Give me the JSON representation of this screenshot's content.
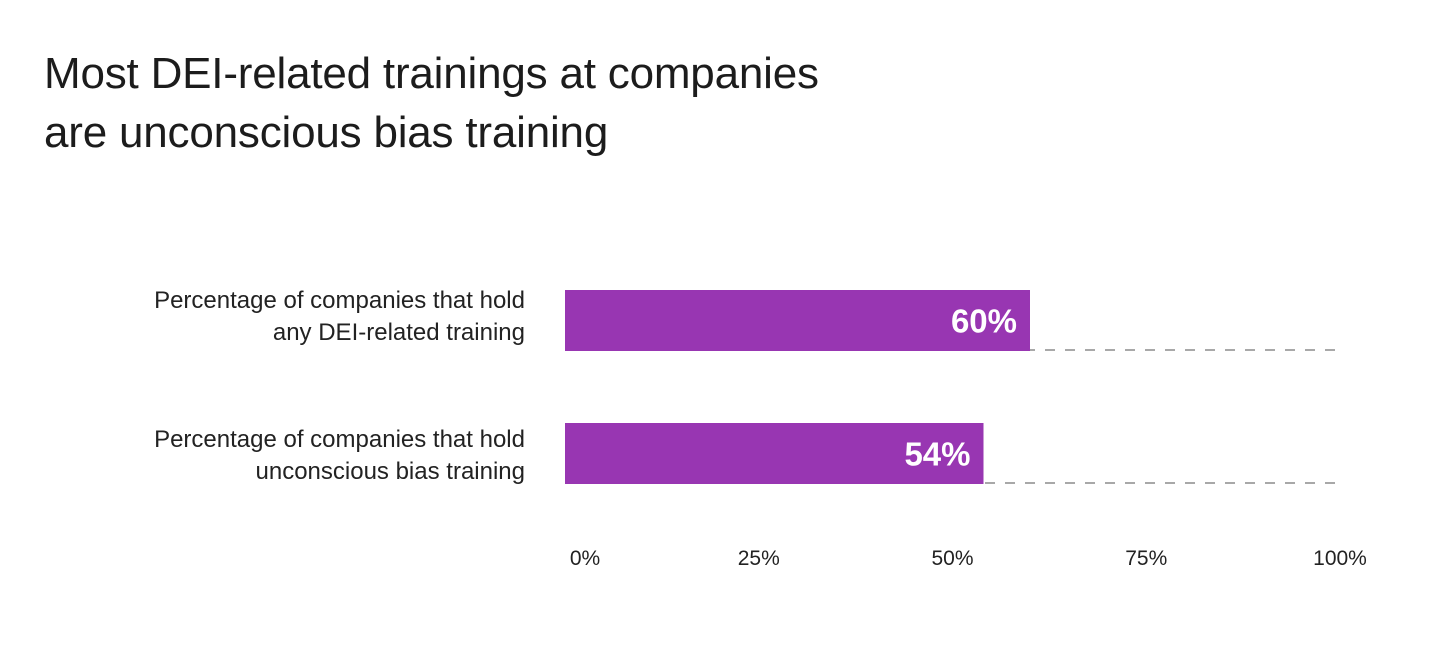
{
  "title_lines": [
    "Most DEI-related trainings at companies",
    "are unconscious bias training"
  ],
  "colors": {
    "bar": "#9836b2",
    "text": "#222222",
    "bar_label": "#ffffff",
    "gridline": "#8c8c8c"
  },
  "chart_data": {
    "type": "bar",
    "orientation": "horizontal",
    "title": "Most DEI-related trainings at companies are unconscious bias training",
    "categories": [
      [
        "Percentage of companies that hold",
        "any DEI-related training"
      ],
      [
        "Percentage of companies that hold",
        "unconscious bias training"
      ]
    ],
    "values": [
      60,
      54
    ],
    "value_labels": [
      "60%",
      "54%"
    ],
    "xlim": [
      0,
      100
    ],
    "x_ticks": [
      0,
      25,
      50,
      75,
      100
    ],
    "x_tick_labels": [
      "0%",
      "25%",
      "50%",
      "75%",
      "100%"
    ],
    "grid": "dashed baseline under each bar",
    "xlabel": "",
    "ylabel": ""
  }
}
